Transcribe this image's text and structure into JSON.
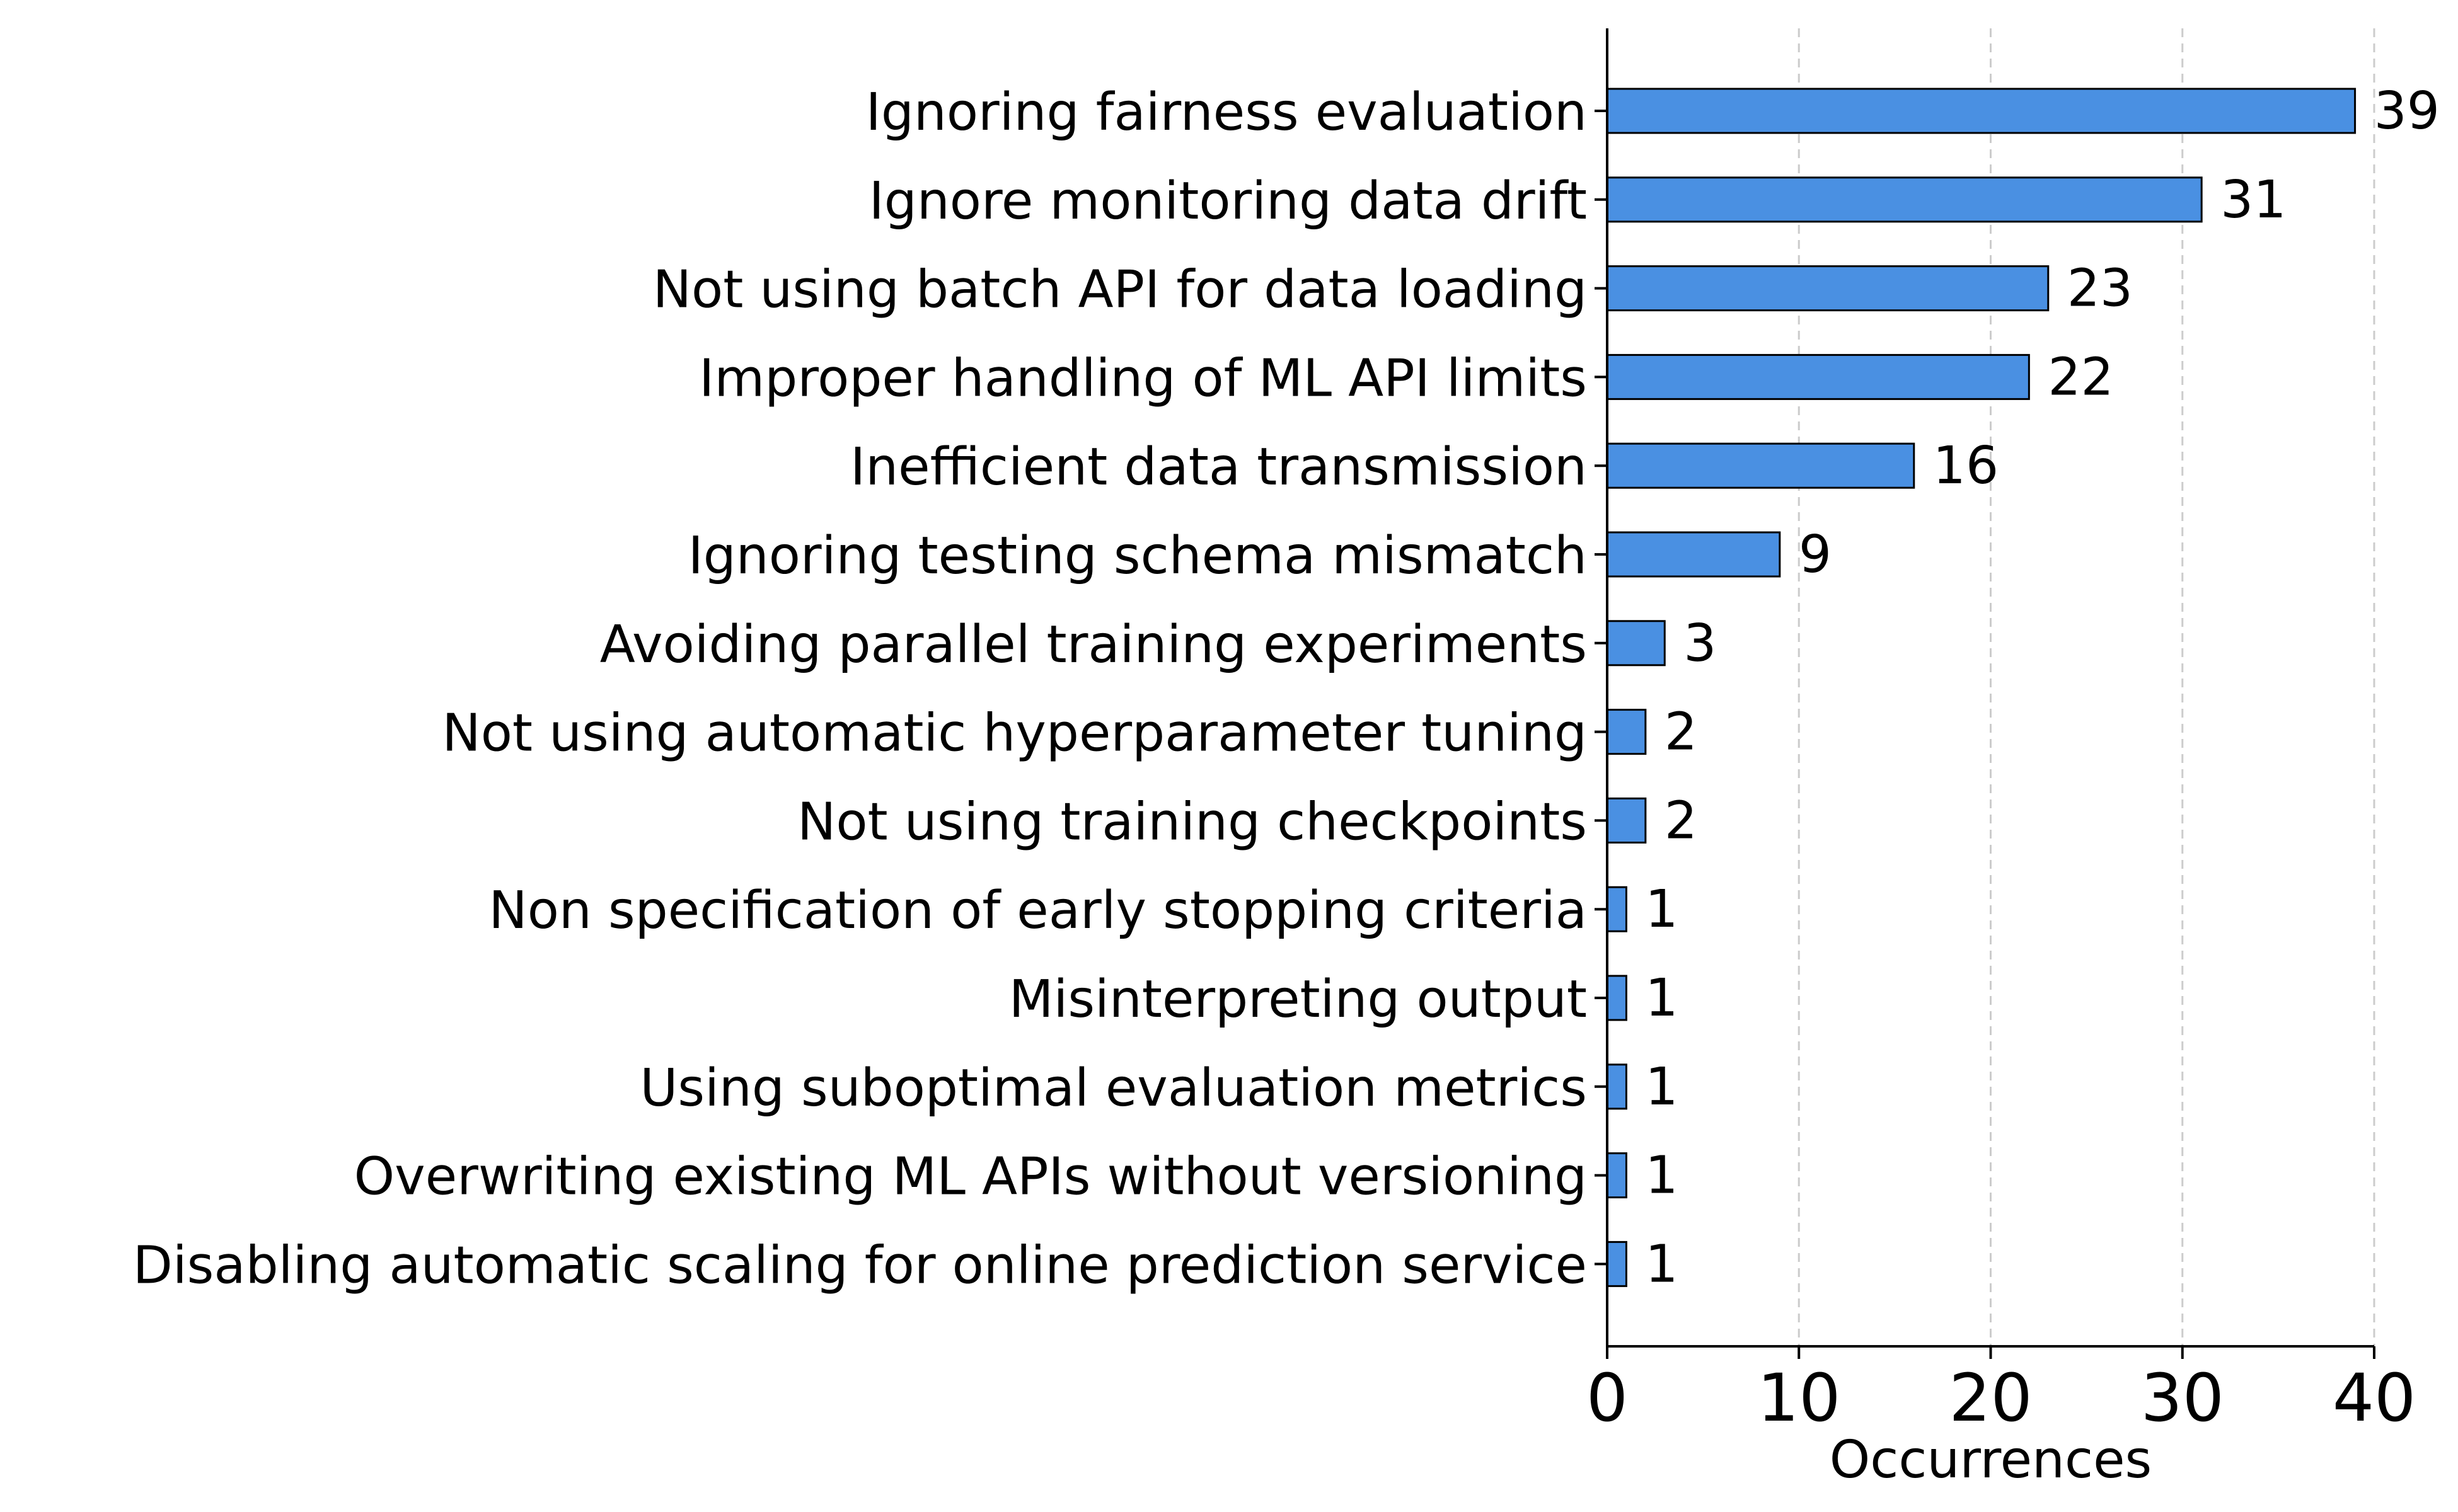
{
  "chart_data": {
    "type": "bar",
    "orientation": "horizontal",
    "title": "",
    "xlabel": "Occurrences",
    "ylabel": "",
    "xlim": [
      0,
      40
    ],
    "xticks": [
      0,
      10,
      20,
      30,
      40
    ],
    "grid": "vertical dashed",
    "bar_color": "#4a90e2",
    "bar_edge_color": "#000000",
    "categories": [
      "Ignoring fairness evaluation",
      "Ignore monitoring data drift",
      "Not using batch API for data loading",
      "Improper handling of ML API limits",
      "Inefficient data transmission",
      "Ignoring testing schema mismatch",
      "Avoiding parallel training experiments",
      "Not using automatic hyperparameter tuning",
      "Not using training checkpoints",
      "Non specification of early stopping criteria",
      "Misinterpreting output",
      "Using suboptimal evaluation metrics",
      "Overwriting existing ML APIs without versioning",
      "Disabling automatic scaling for online prediction service"
    ],
    "values": [
      39,
      31,
      23,
      22,
      16,
      9,
      3,
      2,
      2,
      1,
      1,
      1,
      1,
      1
    ]
  }
}
